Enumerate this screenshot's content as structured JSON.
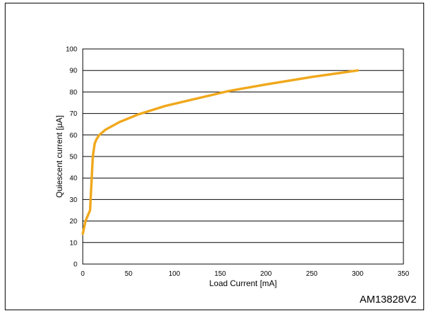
{
  "figure_code": "AM13828V2",
  "chart_data": {
    "type": "line",
    "xlabel": "Load Current [mA]",
    "ylabel": "Quiescent current [µA]",
    "xlim": [
      0,
      350
    ],
    "ylim": [
      0,
      100
    ],
    "xticks": [
      "0",
      "50",
      "100",
      "150",
      "200",
      "250",
      "300",
      "350"
    ],
    "yticks": [
      "0",
      "10",
      "20",
      "30",
      "40",
      "50",
      "60",
      "70",
      "80",
      "90",
      "100"
    ],
    "grid": "horizontal",
    "series": [
      {
        "color": "#f0a81c",
        "x": [
          0,
          3,
          8,
          11,
          13,
          15,
          18,
          25,
          40,
          60,
          90,
          130,
          160,
          200,
          250,
          300
        ],
        "y": [
          14,
          20,
          25,
          50,
          56,
          58,
          60,
          62.5,
          66,
          69.5,
          73.5,
          77.5,
          80.5,
          83.5,
          87,
          90
        ]
      }
    ]
  }
}
